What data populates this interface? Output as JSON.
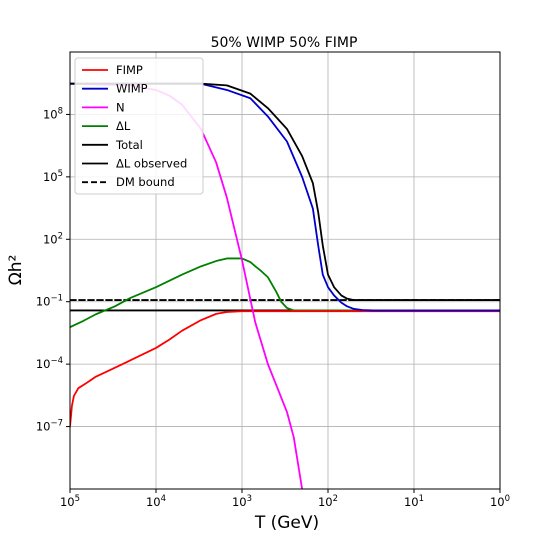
{
  "chart_data": {
    "type": "line",
    "title": "50% WIMP 50% FIMP",
    "xlabel": "T (GeV)",
    "ylabel": "Ωh²",
    "x_scale": "log",
    "y_scale": "log",
    "x_reversed": true,
    "xlim": [
      100000,
      1
    ],
    "ylim": [
      1e-10,
      100000000000.0
    ],
    "grid": true,
    "legend_position": "top-left",
    "xticks": [
      {
        "value": 100000,
        "base": "10",
        "exp": "5"
      },
      {
        "value": 10000,
        "base": "10",
        "exp": "4"
      },
      {
        "value": 1000,
        "base": "10",
        "exp": "3"
      },
      {
        "value": 100,
        "base": "10",
        "exp": "2"
      },
      {
        "value": 10,
        "base": "10",
        "exp": "1"
      },
      {
        "value": 1,
        "base": "10",
        "exp": "0"
      }
    ],
    "yticks": [
      {
        "value": 1e-07,
        "base": "10",
        "exp": "−7"
      },
      {
        "value": 0.0001,
        "base": "10",
        "exp": "−4"
      },
      {
        "value": 0.1,
        "base": "10",
        "exp": "−1"
      },
      {
        "value": 100,
        "base": "10",
        "exp": "2"
      },
      {
        "value": 100000,
        "base": "10",
        "exp": "5"
      },
      {
        "value": 100000000,
        "base": "10",
        "exp": "8"
      }
    ],
    "series": [
      {
        "name": "FIMP",
        "color": "#ff0000",
        "dash": false,
        "x": [
          100000,
          95000,
          90000,
          80000,
          65000,
          50000,
          35000,
          20000,
          10000,
          7000,
          5000,
          3000,
          2000,
          1500,
          1000,
          700,
          400,
          100,
          10,
          1
        ],
        "y": [
          1e-07,
          1e-06,
          3e-06,
          7e-06,
          1.2e-05,
          2.5e-05,
          5e-05,
          0.00015,
          0.0006,
          0.0015,
          0.004,
          0.013,
          0.026,
          0.032,
          0.035,
          0.035,
          0.035,
          0.035,
          0.035,
          0.035
        ]
      },
      {
        "name": "WIMP",
        "color": "#0000cc",
        "dash": false,
        "x": [
          100000,
          10000,
          3000,
          1500,
          800,
          500,
          300,
          200,
          150,
          130,
          115,
          100,
          85,
          70,
          60,
          50,
          40,
          30,
          20,
          10,
          1
        ],
        "y": [
          3000000000.0,
          3000000000.0,
          3000000000.0,
          1500000000.0,
          600000000.0,
          80000000.0,
          5000000.0,
          100000.0,
          3000.0,
          50,
          2,
          0.5,
          0.2,
          0.09,
          0.06,
          0.045,
          0.04,
          0.038,
          0.038,
          0.038,
          0.038
        ]
      },
      {
        "name": "N",
        "color": "#ff00ff",
        "dash": false,
        "x": [
          100000,
          20000,
          10000,
          7000,
          5000,
          3000,
          2000,
          1500,
          1000,
          700,
          500,
          400,
          300,
          250,
          200
        ],
        "y": [
          3000000000.0,
          2500000000.0,
          1500000000.0,
          800000000.0,
          300000000.0,
          20000000.0,
          500000.0,
          10000.0,
          10,
          0.01,
          0.0001,
          1e-05,
          5e-07,
          3e-08,
          1e-10
        ]
      },
      {
        "name": "ΔL",
        "color": "#008000",
        "dash": false,
        "x": [
          100000,
          70000,
          50000,
          30000,
          20000,
          10000,
          5000,
          3000,
          2000,
          1500,
          1000,
          800,
          700,
          600,
          500,
          400,
          350,
          300,
          250,
          200,
          1
        ],
        "y": [
          0.006,
          0.012,
          0.025,
          0.06,
          0.15,
          0.5,
          2,
          5,
          9,
          12,
          12,
          8,
          5,
          3,
          1.5,
          0.3,
          0.1,
          0.05,
          0.038,
          0.038,
          0.038
        ]
      },
      {
        "name": "Total",
        "color": "#000000",
        "dash": false,
        "x": [
          100000,
          10000,
          3000,
          1500,
          800,
          500,
          300,
          200,
          150,
          130,
          115,
          100,
          85,
          70,
          60,
          50,
          40,
          30,
          20,
          10,
          1
        ],
        "y": [
          3000000000.0,
          3000000000.0,
          3000000000.0,
          2500000000.0,
          1000000000.0,
          200000000.0,
          20000000.0,
          1000000.0,
          50000.0,
          2000.0,
          50,
          2,
          0.5,
          0.2,
          0.14,
          0.12,
          0.12,
          0.12,
          0.12,
          0.12,
          0.12
        ]
      },
      {
        "name": "ΔL observed",
        "color": "#000000",
        "dash": false,
        "x": [
          100000,
          1
        ],
        "y": [
          0.038,
          0.038
        ]
      },
      {
        "name": "DM bound",
        "color": "#000000",
        "dash": true,
        "x": [
          100000,
          1
        ],
        "y": [
          0.12,
          0.12
        ]
      }
    ]
  }
}
